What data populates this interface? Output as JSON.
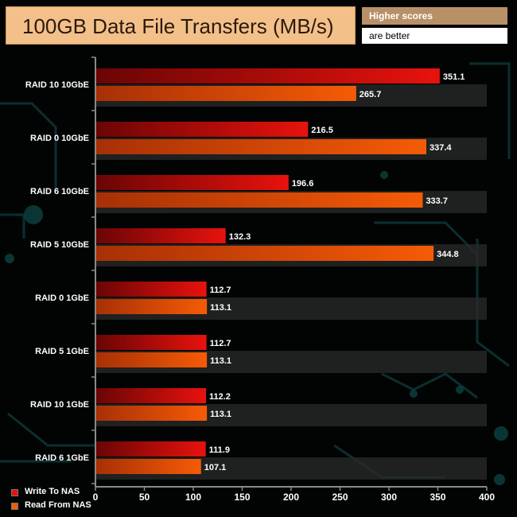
{
  "title": "100GB Data File Transfers (MB/s)",
  "note": {
    "line1": "Higher scores",
    "line2": "are better"
  },
  "colors": {
    "write": "#e8120d",
    "read": "#f55b06",
    "write_dark": "#6a0505",
    "read_dark": "#a83006"
  },
  "chart_data": {
    "type": "bar",
    "orientation": "horizontal",
    "categories": [
      "RAID 10 10GbE",
      "RAID 0 10GbE",
      "RAID 6 10GbE",
      "RAID 5 10GbE",
      "RAID 0 1GbE",
      "RAID 5 1GbE",
      "RAID 10 1GbE",
      "RAID 6 1GbE"
    ],
    "series": [
      {
        "name": "Write To NAS",
        "values": [
          351.1,
          216.5,
          196.6,
          132.3,
          112.7,
          112.7,
          112.2,
          111.9
        ]
      },
      {
        "name": "Read From NAS",
        "values": [
          265.7,
          337.4,
          333.7,
          344.8,
          113.1,
          113.1,
          113.1,
          107.1
        ]
      }
    ],
    "xlim": [
      0,
      400
    ],
    "xticks": [
      "0",
      "50",
      "100",
      "150",
      "200",
      "250",
      "300",
      "350",
      "400"
    ],
    "legend": "bottom-left"
  }
}
